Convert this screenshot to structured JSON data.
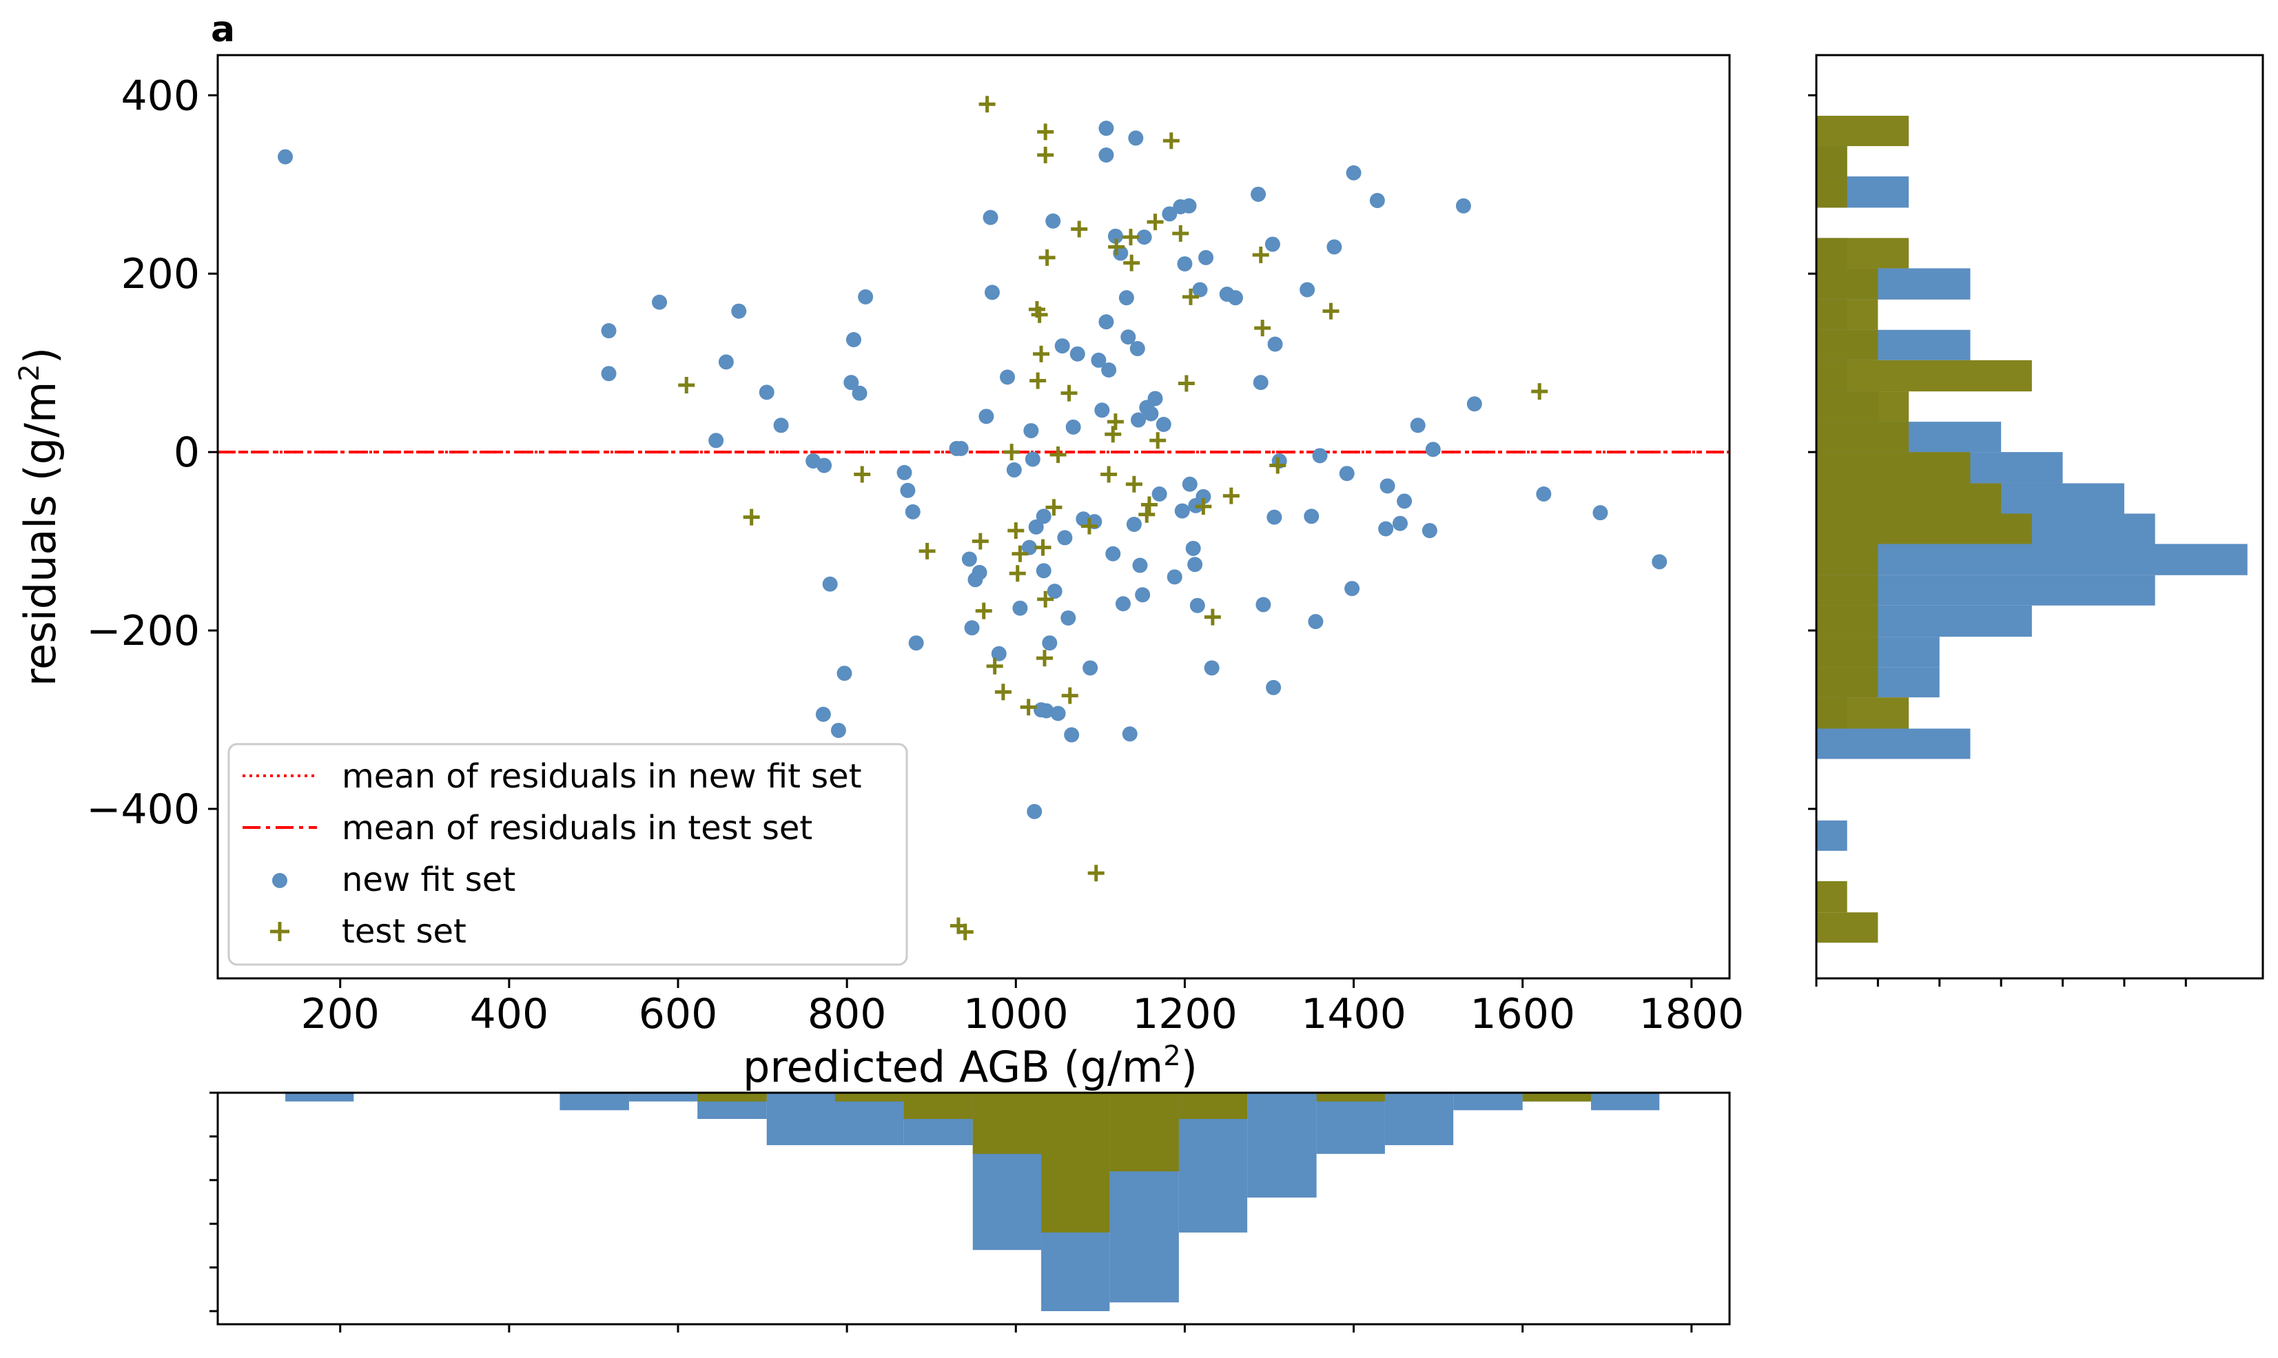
{
  "chart_data": [
    {
      "type": "scatter",
      "panel_label": "a",
      "xlabel": "predicted AGB (g/m",
      "xlabel_sup": "2",
      "xlabel_close": ")",
      "ylabel": "residuals (g/m",
      "ylabel_sup": "2",
      "ylabel_close": ")",
      "xlim": [
        55,
        1845
      ],
      "ylim": [
        -590,
        445
      ],
      "xticks": [
        200,
        400,
        600,
        800,
        1000,
        1200,
        1400,
        1600,
        1800
      ],
      "xtick_labels": [
        "200",
        "400",
        "600",
        "800",
        "1000",
        "1200",
        "1400",
        "1600",
        "1800"
      ],
      "yticks": [
        400,
        200,
        0,
        -200,
        -400
      ],
      "ytick_labels": [
        "400",
        "200",
        "0",
        "−200",
        "−400"
      ],
      "colors": {
        "fit": "#5b8ec1",
        "test": "#7f8016",
        "mean_line": "#ff0000"
      },
      "mean_lines": {
        "new_fit": 0,
        "test": 0
      },
      "legend": {
        "position": "lower left",
        "entries": [
          "mean of residuals in new fit set",
          "mean of residuals in test set",
          "new fit set",
          "test set"
        ]
      },
      "series": [
        {
          "name": "new fit set",
          "marker": "circle",
          "points": [
            [
              135,
              331
            ],
            [
              518,
              136
            ],
            [
              518,
              88
            ],
            [
              578,
              168
            ],
            [
              645,
              13
            ],
            [
              657,
              101
            ],
            [
              672,
              158
            ],
            [
              705,
              67
            ],
            [
              722,
              30
            ],
            [
              760,
              -10
            ],
            [
              773,
              -15
            ],
            [
              772,
              -294
            ],
            [
              780,
              -148
            ],
            [
              790,
              -312
            ],
            [
              797,
              -248
            ],
            [
              805,
              78
            ],
            [
              808,
              126
            ],
            [
              815,
              66
            ],
            [
              822,
              174
            ],
            [
              868,
              -23
            ],
            [
              872,
              -43
            ],
            [
              878,
              -67
            ],
            [
              882,
              -214
            ],
            [
              930,
              4
            ],
            [
              935,
              4
            ],
            [
              945,
              -120
            ],
            [
              948,
              -197
            ],
            [
              952,
              -143
            ],
            [
              957,
              -135
            ],
            [
              965,
              40
            ],
            [
              970,
              263
            ],
            [
              972,
              179
            ],
            [
              980,
              -226
            ],
            [
              990,
              84
            ],
            [
              998,
              -20
            ],
            [
              1005,
              -175
            ],
            [
              1016,
              -107
            ],
            [
              1018,
              24
            ],
            [
              1022,
              -403
            ],
            [
              1020,
              -8
            ],
            [
              1024,
              -84
            ],
            [
              1030,
              -289
            ],
            [
              1033,
              -133
            ],
            [
              1033,
              -72
            ],
            [
              1036,
              -290
            ],
            [
              1040,
              -214
            ],
            [
              1044,
              259
            ],
            [
              1046,
              -156
            ],
            [
              1050,
              -293
            ],
            [
              1055,
              119
            ],
            [
              1058,
              -96
            ],
            [
              1062,
              -186
            ],
            [
              1066,
              -317
            ],
            [
              1068,
              28
            ],
            [
              1073,
              110
            ],
            [
              1080,
              -75
            ],
            [
              1088,
              -242
            ],
            [
              1093,
              -78
            ],
            [
              1098,
              103
            ],
            [
              1102,
              47
            ],
            [
              1107,
              363
            ],
            [
              1107,
              333
            ],
            [
              1107,
              146
            ],
            [
              1110,
              92
            ],
            [
              1115,
              -114
            ],
            [
              1118,
              242
            ],
            [
              1124,
              223
            ],
            [
              1127,
              -170
            ],
            [
              1131,
              173
            ],
            [
              1133,
              129
            ],
            [
              1135,
              -316
            ],
            [
              1140,
              -81
            ],
            [
              1142,
              352
            ],
            [
              1144,
              116
            ],
            [
              1145,
              36
            ],
            [
              1147,
              -127
            ],
            [
              1150,
              -160
            ],
            [
              1152,
              241
            ],
            [
              1155,
              50
            ],
            [
              1160,
              43
            ],
            [
              1165,
              60
            ],
            [
              1170,
              -47
            ],
            [
              1175,
              31
            ],
            [
              1182,
              267
            ],
            [
              1188,
              -140
            ],
            [
              1195,
              275
            ],
            [
              1197,
              -66
            ],
            [
              1200,
              211
            ],
            [
              1205,
              276
            ],
            [
              1206,
              -36
            ],
            [
              1210,
              -108
            ],
            [
              1212,
              -126
            ],
            [
              1213,
              -60
            ],
            [
              1215,
              -172
            ],
            [
              1218,
              182
            ],
            [
              1222,
              -50
            ],
            [
              1225,
              218
            ],
            [
              1232,
              -242
            ],
            [
              1250,
              177
            ],
            [
              1260,
              173
            ],
            [
              1287,
              289
            ],
            [
              1290,
              78
            ],
            [
              1293,
              -171
            ],
            [
              1304,
              233
            ],
            [
              1305,
              -264
            ],
            [
              1306,
              -73
            ],
            [
              1307,
              121
            ],
            [
              1312,
              -10
            ],
            [
              1345,
              182
            ],
            [
              1350,
              -72
            ],
            [
              1355,
              -190
            ],
            [
              1360,
              -4
            ],
            [
              1377,
              230
            ],
            [
              1392,
              -24
            ],
            [
              1398,
              -153
            ],
            [
              1400,
              313
            ],
            [
              1428,
              282
            ],
            [
              1438,
              -86
            ],
            [
              1440,
              -38
            ],
            [
              1455,
              -80
            ],
            [
              1460,
              -55
            ],
            [
              1476,
              30
            ],
            [
              1490,
              -88
            ],
            [
              1494,
              3
            ],
            [
              1530,
              276
            ],
            [
              1543,
              54
            ],
            [
              1625,
              -47
            ],
            [
              1692,
              -68
            ],
            [
              1762,
              -123
            ]
          ]
        },
        {
          "name": "test set",
          "marker": "plus",
          "points": [
            [
              610,
              75
            ],
            [
              687,
              -73
            ],
            [
              818,
              -25
            ],
            [
              895,
              -111
            ],
            [
              932,
              -531
            ],
            [
              940,
              -538
            ],
            [
              958,
              -100
            ],
            [
              962,
              -178
            ],
            [
              966,
              390
            ],
            [
              975,
              -240
            ],
            [
              985,
              -269
            ],
            [
              995,
              0
            ],
            [
              1000,
              -88
            ],
            [
              1002,
              -136
            ],
            [
              1005,
              -114
            ],
            [
              1015,
              -286
            ],
            [
              1025,
              160
            ],
            [
              1026,
              80
            ],
            [
              1028,
              154
            ],
            [
              1030,
              110
            ],
            [
              1032,
              -107
            ],
            [
              1034,
              -231
            ],
            [
              1035,
              333
            ],
            [
              1035,
              359
            ],
            [
              1035,
              -165
            ],
            [
              1037,
              218
            ],
            [
              1045,
              -62
            ],
            [
              1050,
              -3
            ],
            [
              1063,
              66
            ],
            [
              1064,
              -273
            ],
            [
              1075,
              250
            ],
            [
              1087,
              -83
            ],
            [
              1095,
              -472
            ],
            [
              1110,
              -25
            ],
            [
              1115,
              20
            ],
            [
              1118,
              34
            ],
            [
              1119,
              230
            ],
            [
              1136,
              241
            ],
            [
              1137,
              212
            ],
            [
              1140,
              -36
            ],
            [
              1155,
              -70
            ],
            [
              1158,
              -59
            ],
            [
              1165,
              258
            ],
            [
              1168,
              13
            ],
            [
              1184,
              349
            ],
            [
              1195,
              245
            ],
            [
              1202,
              77
            ],
            [
              1207,
              174
            ],
            [
              1222,
              -61
            ],
            [
              1233,
              -185
            ],
            [
              1255,
              -49
            ],
            [
              1290,
              221
            ],
            [
              1292,
              139
            ],
            [
              1310,
              -15
            ],
            [
              1373,
              158
            ],
            [
              1620,
              68
            ]
          ]
        }
      ]
    },
    {
      "type": "histogram",
      "orientation": "horizontal",
      "location": "right",
      "description_axis": "residuals (g/m2)",
      "bin_edges": [
        -550,
        -516,
        -481,
        -447,
        -413,
        -378,
        -344,
        -310,
        -275,
        -241,
        -207,
        -172,
        -138,
        -103,
        -69,
        -35,
        0,
        34,
        68,
        103,
        137,
        171,
        206,
        240,
        274,
        309,
        343,
        377
      ],
      "series": [
        {
          "name": "new fit set",
          "counts": [
            0,
            0,
            0,
            1,
            0,
            0,
            5,
            1,
            4,
            4,
            7,
            11,
            14,
            11,
            10,
            8,
            6,
            2,
            1,
            5,
            1,
            5,
            1,
            0,
            3,
            1,
            0
          ]
        },
        {
          "name": "test set",
          "counts": [
            2,
            1,
            0,
            0,
            0,
            0,
            0,
            3,
            2,
            2,
            2,
            2,
            2,
            7,
            6,
            5,
            3,
            3,
            7,
            2,
            2,
            2,
            3,
            0,
            1,
            1,
            3
          ]
        }
      ]
    },
    {
      "type": "histogram",
      "orientation": "vertical",
      "location": "bottom",
      "description_axis": "predicted AGB (g/m2)",
      "bin_edges": [
        135,
        216,
        298,
        379,
        460,
        542,
        623,
        705,
        786,
        867,
        949,
        1030,
        1111,
        1193,
        1274,
        1356,
        1437,
        1518,
        1600,
        1681,
        1762
      ],
      "series": [
        {
          "name": "new fit set",
          "counts": [
            1,
            0,
            0,
            0,
            2,
            1,
            3,
            6,
            6,
            6,
            18,
            25,
            24,
            16,
            12,
            7,
            6,
            2,
            1,
            2
          ]
        },
        {
          "name": "test set",
          "counts": [
            0,
            0,
            0,
            0,
            0,
            0,
            1,
            0,
            1,
            3,
            7,
            16,
            9,
            3,
            0,
            1,
            0,
            0,
            1,
            0
          ]
        }
      ]
    }
  ]
}
